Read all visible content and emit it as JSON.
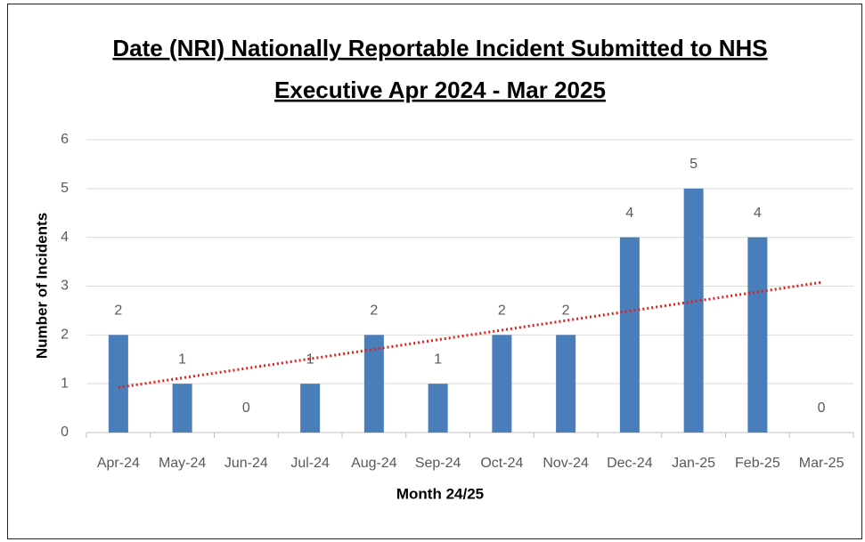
{
  "chart_data": {
    "type": "bar",
    "title": [
      "Date (NRI) Nationally Reportable Incident Submitted to NHS",
      "Executive Apr 2024 - Mar 2025"
    ],
    "xlabel": "Month 24/25",
    "ylabel": "Number of Incidents",
    "categories": [
      "Apr-24",
      "May-24",
      "Jun-24",
      "Jul-24",
      "Aug-24",
      "Sep-24",
      "Oct-24",
      "Nov-24",
      "Dec-24",
      "Jan-25",
      "Feb-25",
      "Mar-25"
    ],
    "values": [
      2,
      1,
      0,
      1,
      2,
      1,
      2,
      2,
      4,
      5,
      4,
      0
    ],
    "color": "#4a7ebb",
    "ylim": [
      0,
      6
    ],
    "yticks": [
      0,
      1,
      2,
      3,
      4,
      5,
      6
    ],
    "grid": true,
    "trendline": "linear",
    "trendline_color": "#e0201b"
  }
}
